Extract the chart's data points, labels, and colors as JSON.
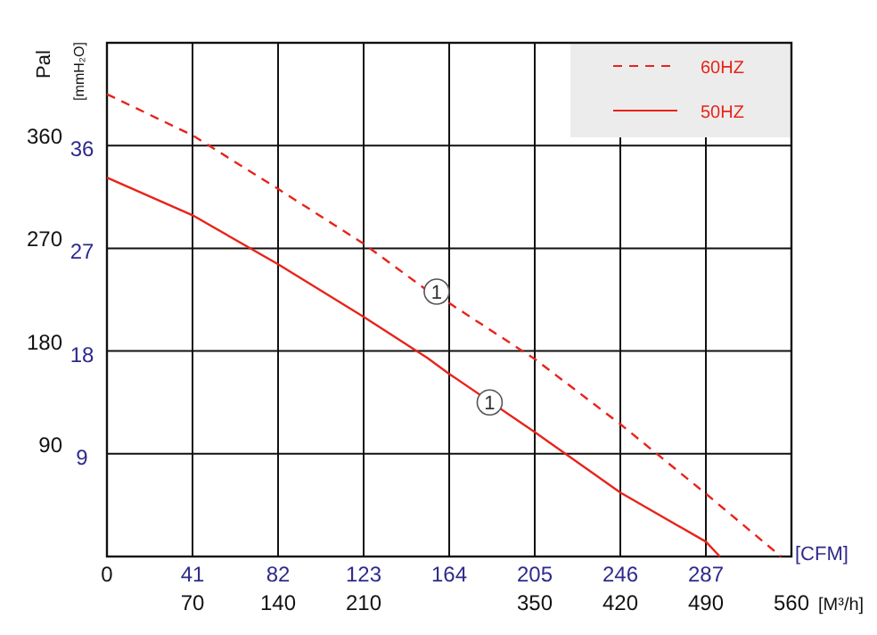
{
  "chart_data": {
    "type": "line",
    "xlabel": "[CFM]",
    "x2label": "[M³/h]",
    "ylabel": "[mmH₂O]",
    "y2label": "Pal",
    "xlim": [
      0,
      328
    ],
    "xticks": [
      0,
      41,
      82,
      123,
      164,
      205,
      246,
      287
    ],
    "x2lim": [
      0,
      560
    ],
    "x2ticks": [
      70,
      140,
      210,
      350,
      420,
      490,
      560
    ],
    "ylim": [
      0,
      45
    ],
    "yticks": [
      9,
      18,
      27,
      36
    ],
    "y2lim": [
      0,
      450
    ],
    "y2ticks": [
      90,
      180,
      270,
      360
    ],
    "grid": true,
    "legend": "top right",
    "series": [
      {
        "name": "60HZ",
        "color": "#e8231a",
        "line_style": "dashed",
        "x": [
          0,
          41,
          82,
          123,
          153.5,
          164,
          205,
          246,
          287,
          323
        ],
        "values": [
          40.5,
          36.9,
          32.2,
          27.4,
          23.3,
          22.2,
          17.3,
          11.6,
          5.5,
          0
        ]
      },
      {
        "name": "50HZ",
        "color": "#e8231a",
        "line_style": "solid",
        "x": [
          0,
          41,
          82,
          123,
          153.5,
          164,
          205,
          246,
          287,
          293.7
        ],
        "values": [
          33.2,
          29.9,
          25.6,
          21.0,
          17.4,
          16.0,
          10.9,
          5.6,
          1.3,
          0
        ]
      }
    ],
    "annotations": [
      {
        "text": "1",
        "x": 158,
        "y": 23.2
      },
      {
        "text": "1",
        "x": 183.4,
        "y": 13.5
      }
    ]
  }
}
